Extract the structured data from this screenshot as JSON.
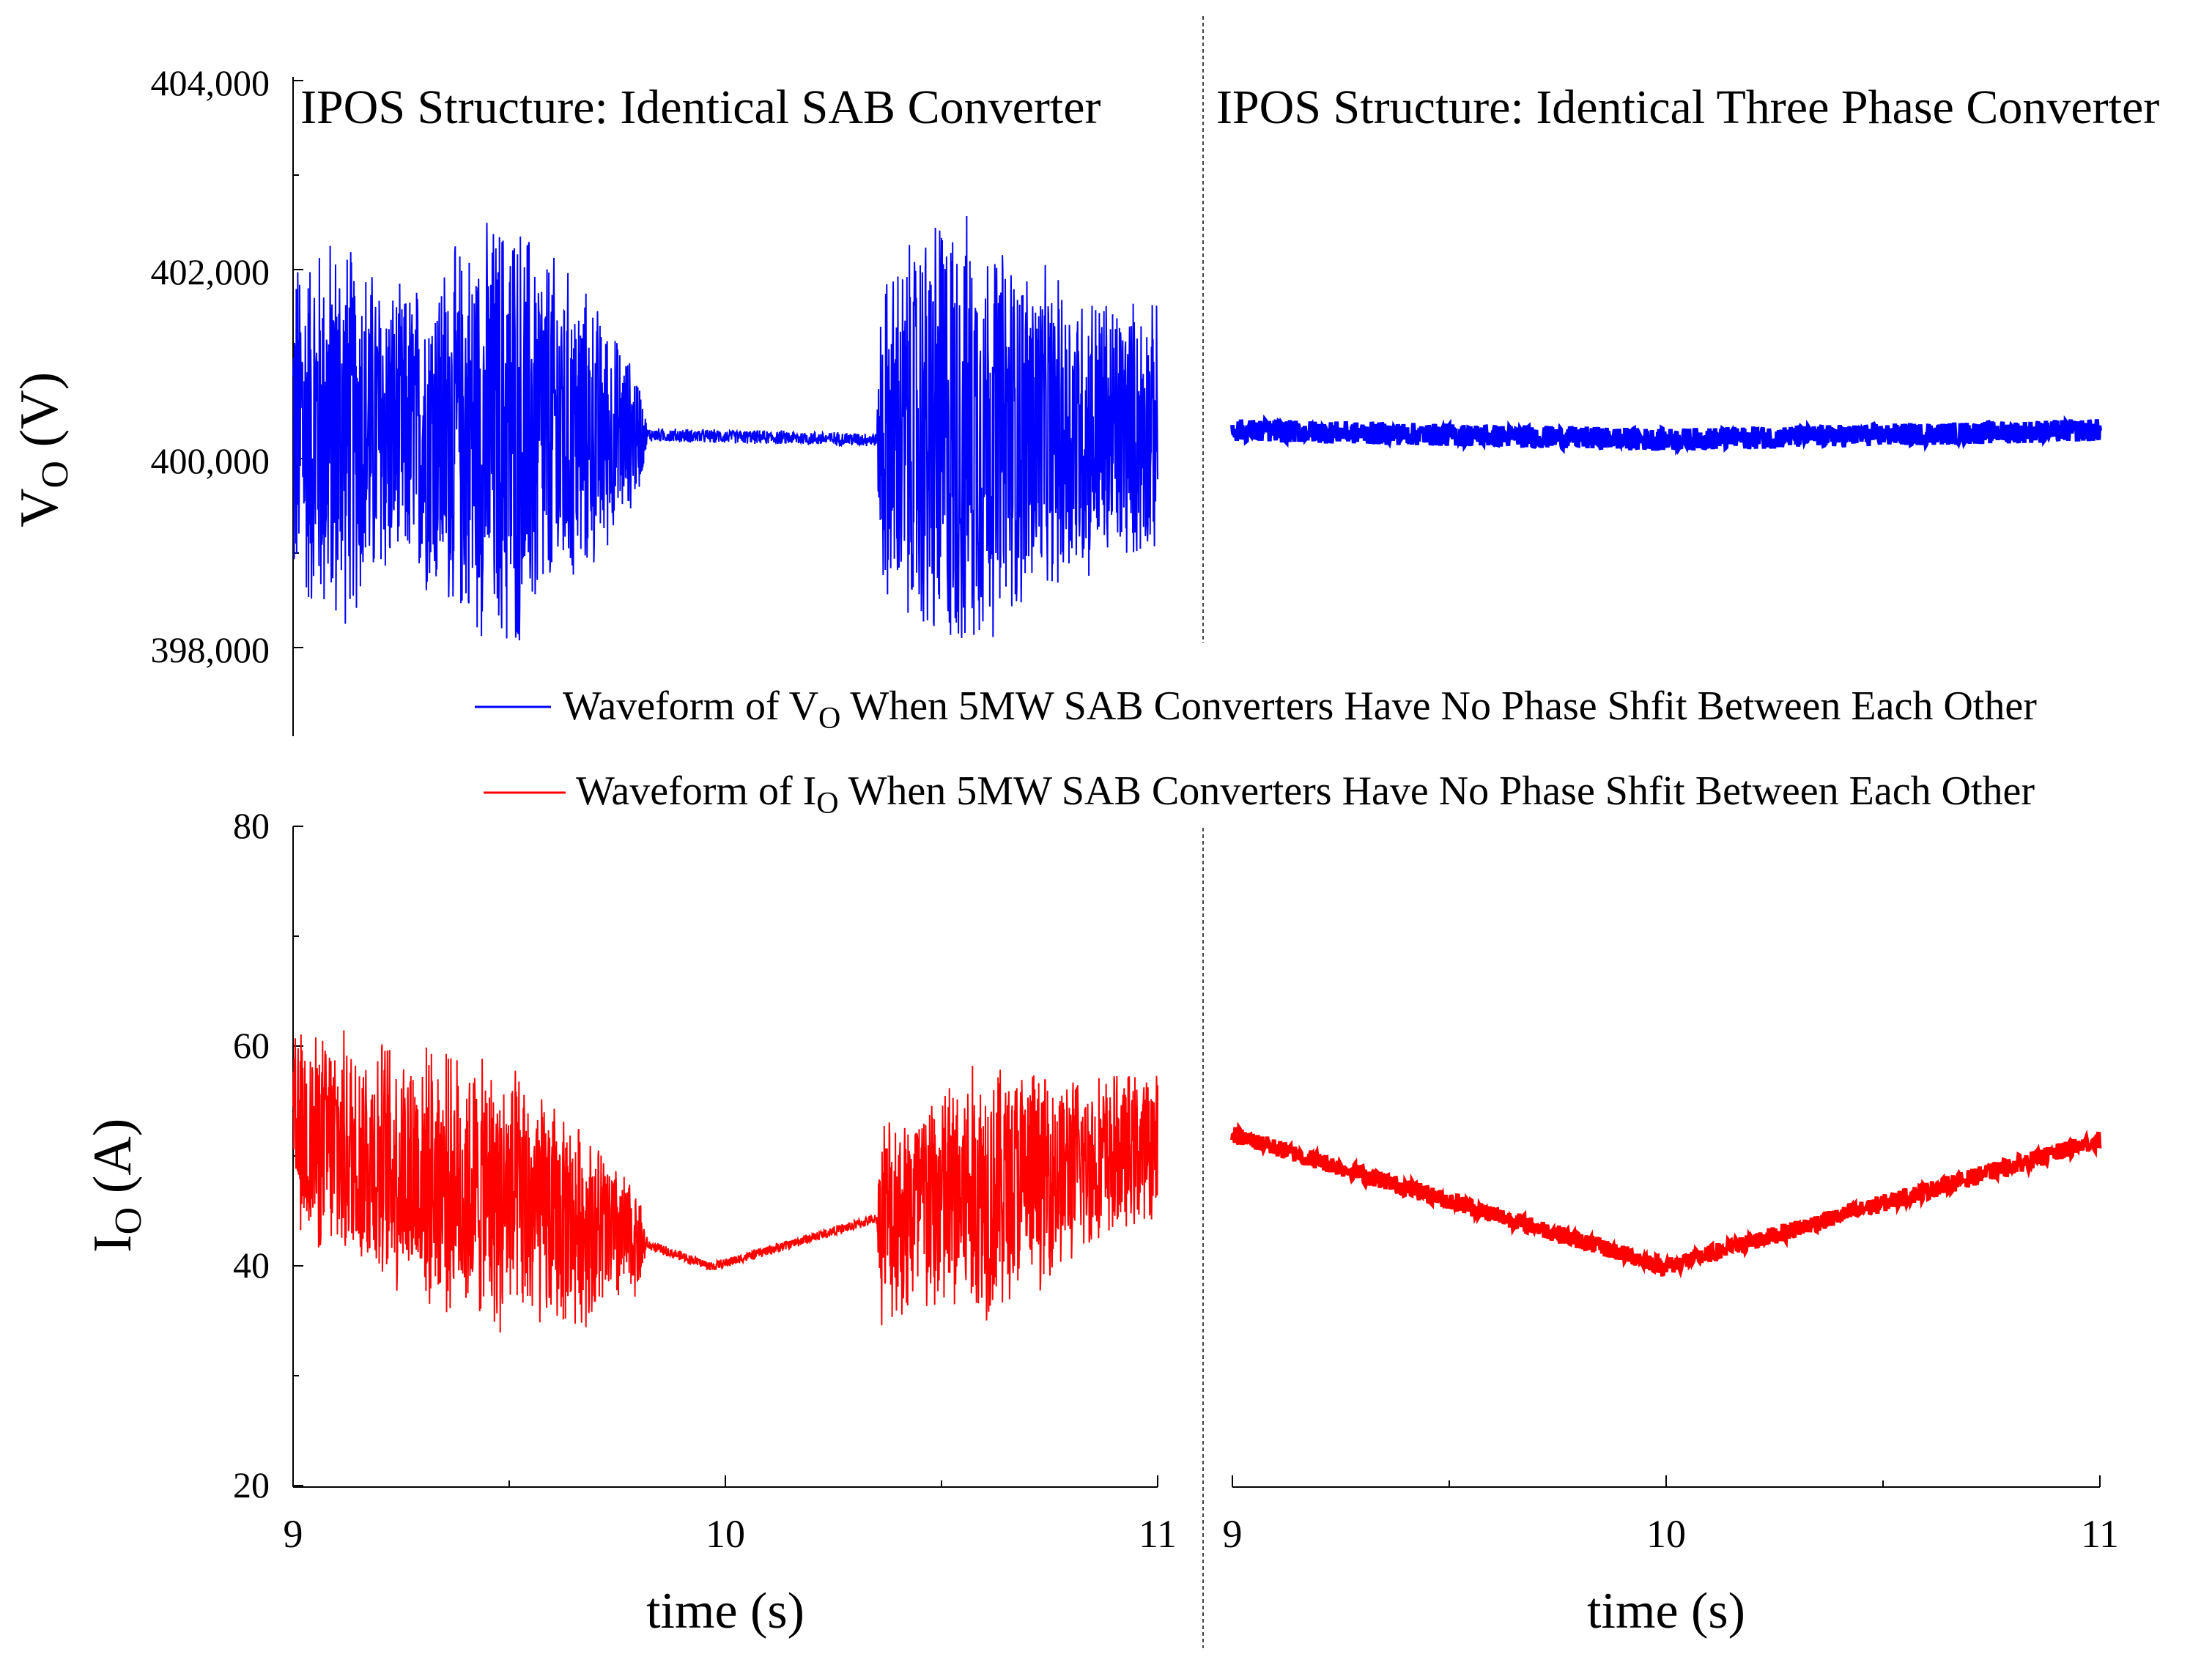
{
  "figure": {
    "top_left_title": "IPOS Structure: Identical SAB Converter",
    "top_right_title": "IPOS Structure: Identical Three Phase Converter",
    "xlabel_left": "time (s)",
    "xlabel_right": "time (s)",
    "x_ticks_left": [
      "9",
      "10",
      "11"
    ],
    "x_ticks_right": [
      "9",
      "10",
      "11"
    ],
    "vo_yticks": [
      "404,000",
      "402,000",
      "400,000",
      "398,000"
    ],
    "io_yticks": [
      "80",
      "60",
      "40",
      "20"
    ],
    "vo_ylabel_main": "V",
    "vo_ylabel_sub": "O",
    "vo_ylabel_unit": " (V)",
    "io_ylabel_main": "I",
    "io_ylabel_sub": "O",
    "io_ylabel_unit": "  (A)",
    "legend_vo": {
      "prefix": "Waveform of V",
      "sub": "O",
      "suffix": " When 5MW SAB Converters Have No Phase Shfit Between Each Other"
    },
    "legend_io": {
      "prefix": "Waveform of I",
      "sub": "O",
      "suffix": " When 5MW SAB Converters Have No Phase Shfit Between Each Other"
    },
    "colors": {
      "vo": "#0000ff",
      "io": "#ff0000",
      "axis": "#000000"
    }
  },
  "chart_data": [
    {
      "type": "line",
      "title": "IPOS Structure: Identical SAB Converter",
      "series": [
        {
          "name": "Waveform of VO When 5MW SAB Converters Have No Phase Shfit Between Each Other",
          "x": [
            9,
            9.82,
            10.36,
            11
          ],
          "center": [
            400300,
            400250,
            400200,
            400300
          ],
          "envelope_profile": [
            [
              9,
              2000
            ],
            [
              9.1,
              2300
            ],
            [
              9.25,
              1600
            ],
            [
              9.5,
              2600
            ],
            [
              9.7,
              1500
            ],
            [
              9.8,
              700
            ],
            [
              9.82,
              80
            ],
            [
              10.35,
              80
            ],
            [
              10.36,
              1800
            ],
            [
              10.5,
              2700
            ],
            [
              10.75,
              1800
            ],
            [
              11,
              1400
            ]
          ]
        }
      ],
      "xlabel": "time (s)",
      "ylabel": "VO (V)",
      "xlim": [
        9,
        11
      ],
      "ylim": [
        397000,
        404000
      ]
    },
    {
      "type": "line",
      "title": "IPOS Structure: Identical Three Phase Converter",
      "series": [
        {
          "name": "VO",
          "x": [
            9,
            10,
            11
          ],
          "values": [
            400300,
            400200,
            400300
          ],
          "band": 120
        }
      ],
      "xlabel": "time (s)",
      "xlim": [
        9,
        11
      ],
      "ylim": [
        397000,
        404000
      ]
    },
    {
      "type": "line",
      "title": "",
      "series": [
        {
          "name": "Waveform of IO When 5MW SAB Converters Have No Phase Shfit Between Each Other",
          "x": [
            9,
            9.82,
            9.97,
            10.36,
            11
          ],
          "center": [
            52,
            42,
            40,
            44.5,
            51
          ],
          "envelope_profile": [
            [
              9,
              10
            ],
            [
              9.2,
              12
            ],
            [
              9.5,
              13
            ],
            [
              9.7,
              9
            ],
            [
              9.8,
              5
            ],
            [
              9.82,
              0.5
            ],
            [
              10.35,
              0.5
            ],
            [
              10.36,
              10
            ],
            [
              10.6,
              13
            ],
            [
              10.8,
              9
            ],
            [
              11,
              7
            ]
          ]
        }
      ],
      "xlabel": "time (s)",
      "ylabel": "IO (A)",
      "xlim": [
        9,
        11
      ],
      "ylim": [
        20,
        80
      ]
    },
    {
      "type": "line",
      "title": "",
      "series": [
        {
          "name": "IO",
          "x": [
            9,
            10,
            11
          ],
          "values": [
            52,
            40,
            51.5
          ],
          "band": 0.8
        }
      ],
      "xlabel": "time (s)",
      "xlim": [
        9,
        11
      ],
      "ylim": [
        20,
        80
      ]
    }
  ]
}
